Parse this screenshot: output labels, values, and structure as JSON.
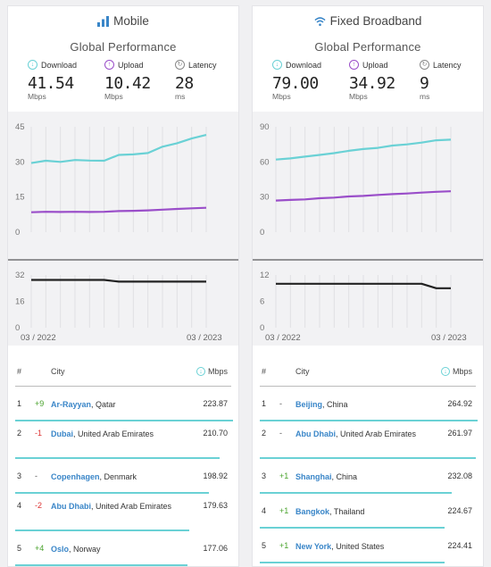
{
  "panels": [
    {
      "title": "Mobile",
      "icon": "signal-bars-icon",
      "subtitle": "Global Performance",
      "metrics": {
        "download": {
          "label": "Download",
          "value": "41.54",
          "unit": "Mbps"
        },
        "upload": {
          "label": "Upload",
          "value": "10.42",
          "unit": "Mbps"
        },
        "latency": {
          "label": "Latency",
          "value": "28",
          "unit": "ms"
        }
      },
      "speed_chart": {
        "y_ticks": [
          "45",
          "30",
          "15",
          "0"
        ],
        "ylim": [
          0,
          45
        ],
        "download": [
          29.5,
          30.5,
          30,
          30.8,
          30.6,
          30.5,
          33,
          33.2,
          33.8,
          36.5,
          38,
          40,
          41.54
        ],
        "upload": [
          8.5,
          8.7,
          8.6,
          8.7,
          8.6,
          8.7,
          9,
          9.1,
          9.3,
          9.6,
          9.9,
          10.2,
          10.42
        ]
      },
      "latency_chart": {
        "y_ticks": [
          "32",
          "16",
          "0"
        ],
        "ylim": [
          0,
          32
        ],
        "latency": [
          29,
          29,
          29,
          29,
          29,
          29,
          28,
          28,
          28,
          28,
          28,
          28,
          28
        ]
      },
      "date_start": "03 / 2022",
      "date_end": "03 / 2023",
      "table": {
        "h_rank": "#",
        "h_city": "City",
        "h_speed": "Mbps",
        "rows": [
          {
            "rank": "1",
            "change": "+9",
            "city": "Ar-Rayyan",
            "country": ", Qatar",
            "speed": "223.87",
            "bar": 1.0
          },
          {
            "rank": "2",
            "change": "-1",
            "city": "Dubai",
            "country": ", United Arab Emirates",
            "speed": "210.70",
            "bar": 0.94
          },
          {
            "rank": "3",
            "change": "-",
            "city": "Copenhagen",
            "country": ", Denmark",
            "speed": "198.92",
            "bar": 0.89
          },
          {
            "rank": "4",
            "change": "-2",
            "city": "Abu Dhabi",
            "country": ", United Arab Emirates",
            "speed": "179.63",
            "bar": 0.8
          },
          {
            "rank": "5",
            "change": "+4",
            "city": "Oslo",
            "country": ", Norway",
            "speed": "177.06",
            "bar": 0.79
          }
        ]
      }
    },
    {
      "title": "Fixed Broadband",
      "icon": "wifi-icon",
      "subtitle": "Global Performance",
      "metrics": {
        "download": {
          "label": "Download",
          "value": "79.00",
          "unit": "Mbps"
        },
        "upload": {
          "label": "Upload",
          "value": "34.92",
          "unit": "Mbps"
        },
        "latency": {
          "label": "Latency",
          "value": "9",
          "unit": "ms"
        }
      },
      "speed_chart": {
        "y_ticks": [
          "90",
          "60",
          "30",
          "0"
        ],
        "ylim": [
          0,
          90
        ],
        "download": [
          62,
          63,
          64.5,
          66,
          67.5,
          69.5,
          71,
          72,
          74,
          75,
          76.5,
          78.5,
          79
        ],
        "upload": [
          27,
          27.5,
          28,
          29,
          29.5,
          30.5,
          31,
          31.8,
          32.5,
          33,
          33.8,
          34.5,
          34.92
        ]
      },
      "latency_chart": {
        "y_ticks": [
          "12",
          "6",
          "0"
        ],
        "ylim": [
          0,
          12
        ],
        "latency": [
          10,
          10,
          10,
          10,
          10,
          10,
          10,
          10,
          10,
          10,
          10,
          9,
          9
        ]
      },
      "date_start": "03 / 2022",
      "date_end": "03 / 2023",
      "table": {
        "h_rank": "#",
        "h_city": "City",
        "h_speed": "Mbps",
        "rows": [
          {
            "rank": "1",
            "change": "-",
            "city": "Beijing",
            "country": ", China",
            "speed": "264.92",
            "bar": 1.0
          },
          {
            "rank": "2",
            "change": "-",
            "city": "Abu Dhabi",
            "country": ", United Arab Emirates",
            "speed": "261.97",
            "bar": 0.99
          },
          {
            "rank": "3",
            "change": "+1",
            "city": "Shanghai",
            "country": ", China",
            "speed": "232.08",
            "bar": 0.88
          },
          {
            "rank": "4",
            "change": "+1",
            "city": "Bangkok",
            "country": ", Thailand",
            "speed": "224.67",
            "bar": 0.85
          },
          {
            "rank": "5",
            "change": "+1",
            "city": "New York",
            "country": ", United States",
            "speed": "224.41",
            "bar": 0.85
          }
        ]
      }
    }
  ],
  "colors": {
    "download": "#6ad1d5",
    "upload": "#9a4ec9",
    "latency": "#222222",
    "link": "#3a86c8",
    "positive": "#4aa32d",
    "negative": "#dd3333"
  }
}
